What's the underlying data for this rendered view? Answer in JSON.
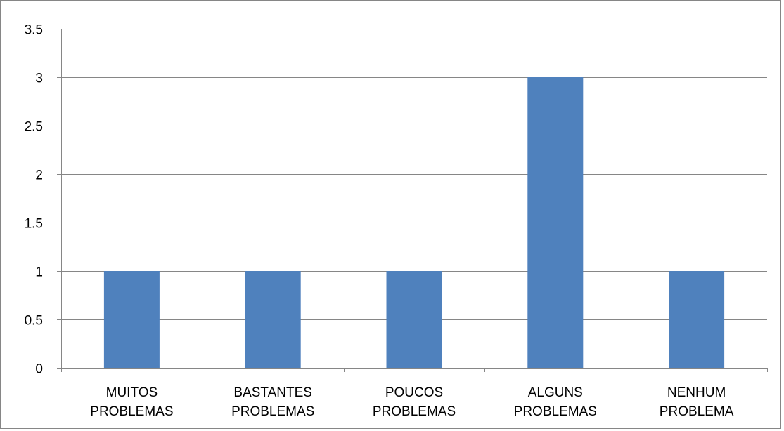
{
  "chart_data": {
    "type": "bar",
    "title": "",
    "xlabel": "",
    "ylabel": "",
    "categories": [
      [
        "MUITOS",
        "PROBLEMAS"
      ],
      [
        "BASTANTES",
        "PROBLEMAS"
      ],
      [
        "POUCOS",
        "PROBLEMAS"
      ],
      [
        "ALGUNS",
        "PROBLEMAS"
      ],
      [
        "NENHUM",
        "PROBLEMA"
      ]
    ],
    "values": [
      1,
      1,
      1,
      3,
      1
    ],
    "ylim": [
      0,
      3.5
    ],
    "yticks": [
      "0",
      "0.5",
      "1",
      "1.5",
      "2",
      "2.5",
      "3",
      "3.5"
    ],
    "grid": "horizontal",
    "legend": "none",
    "colors": {
      "bar": "#4f81bd",
      "grid": "#868686",
      "axis": "#868686",
      "text": "#000000"
    }
  }
}
